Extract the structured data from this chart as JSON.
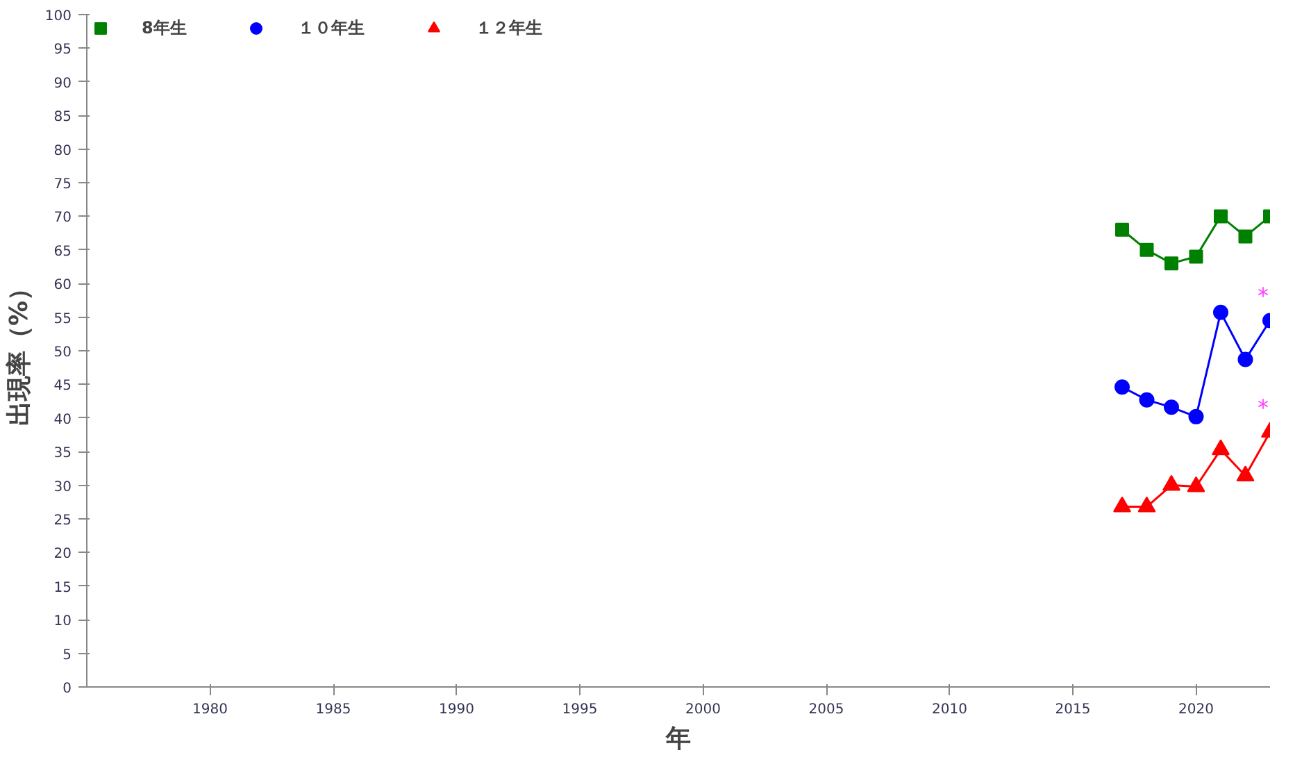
{
  "chart_data": {
    "type": "line",
    "xlabel": "年",
    "ylabel": "出現率（%）",
    "x": [
      2017,
      2018,
      2019,
      2020,
      2021,
      2022,
      2023
    ],
    "series": [
      {
        "name": "8年生",
        "color": "#008000",
        "marker": "square",
        "values": [
          68,
          65,
          63,
          64,
          70,
          67,
          70
        ]
      },
      {
        "name": "１０年生",
        "color": "#0000ff",
        "marker": "circle",
        "values": [
          44.6,
          42.7,
          41.6,
          40.2,
          55.7,
          48.7,
          54.5
        ]
      },
      {
        "name": "１２年生",
        "color": "#ff0000",
        "marker": "triangle",
        "values": [
          26.8,
          26.8,
          30,
          29.8,
          35.3,
          31.4,
          37.9
        ]
      }
    ],
    "annotations": [
      {
        "text": "*",
        "x": 2023,
        "y": 54.5
      },
      {
        "text": "*",
        "x": 2023,
        "y": 37.9
      }
    ],
    "xlim": [
      1975,
      2023
    ],
    "xticks": [
      1980,
      1985,
      1990,
      1995,
      2000,
      2005,
      2010,
      2015,
      2020
    ],
    "ylim": [
      0,
      100
    ],
    "yticks": [
      0,
      5,
      10,
      15,
      20,
      25,
      30,
      35,
      40,
      45,
      50,
      55,
      60,
      65,
      70,
      75,
      80,
      85,
      90,
      95,
      100
    ],
    "grid": false,
    "legend": "top left",
    "line_style": "solid"
  }
}
